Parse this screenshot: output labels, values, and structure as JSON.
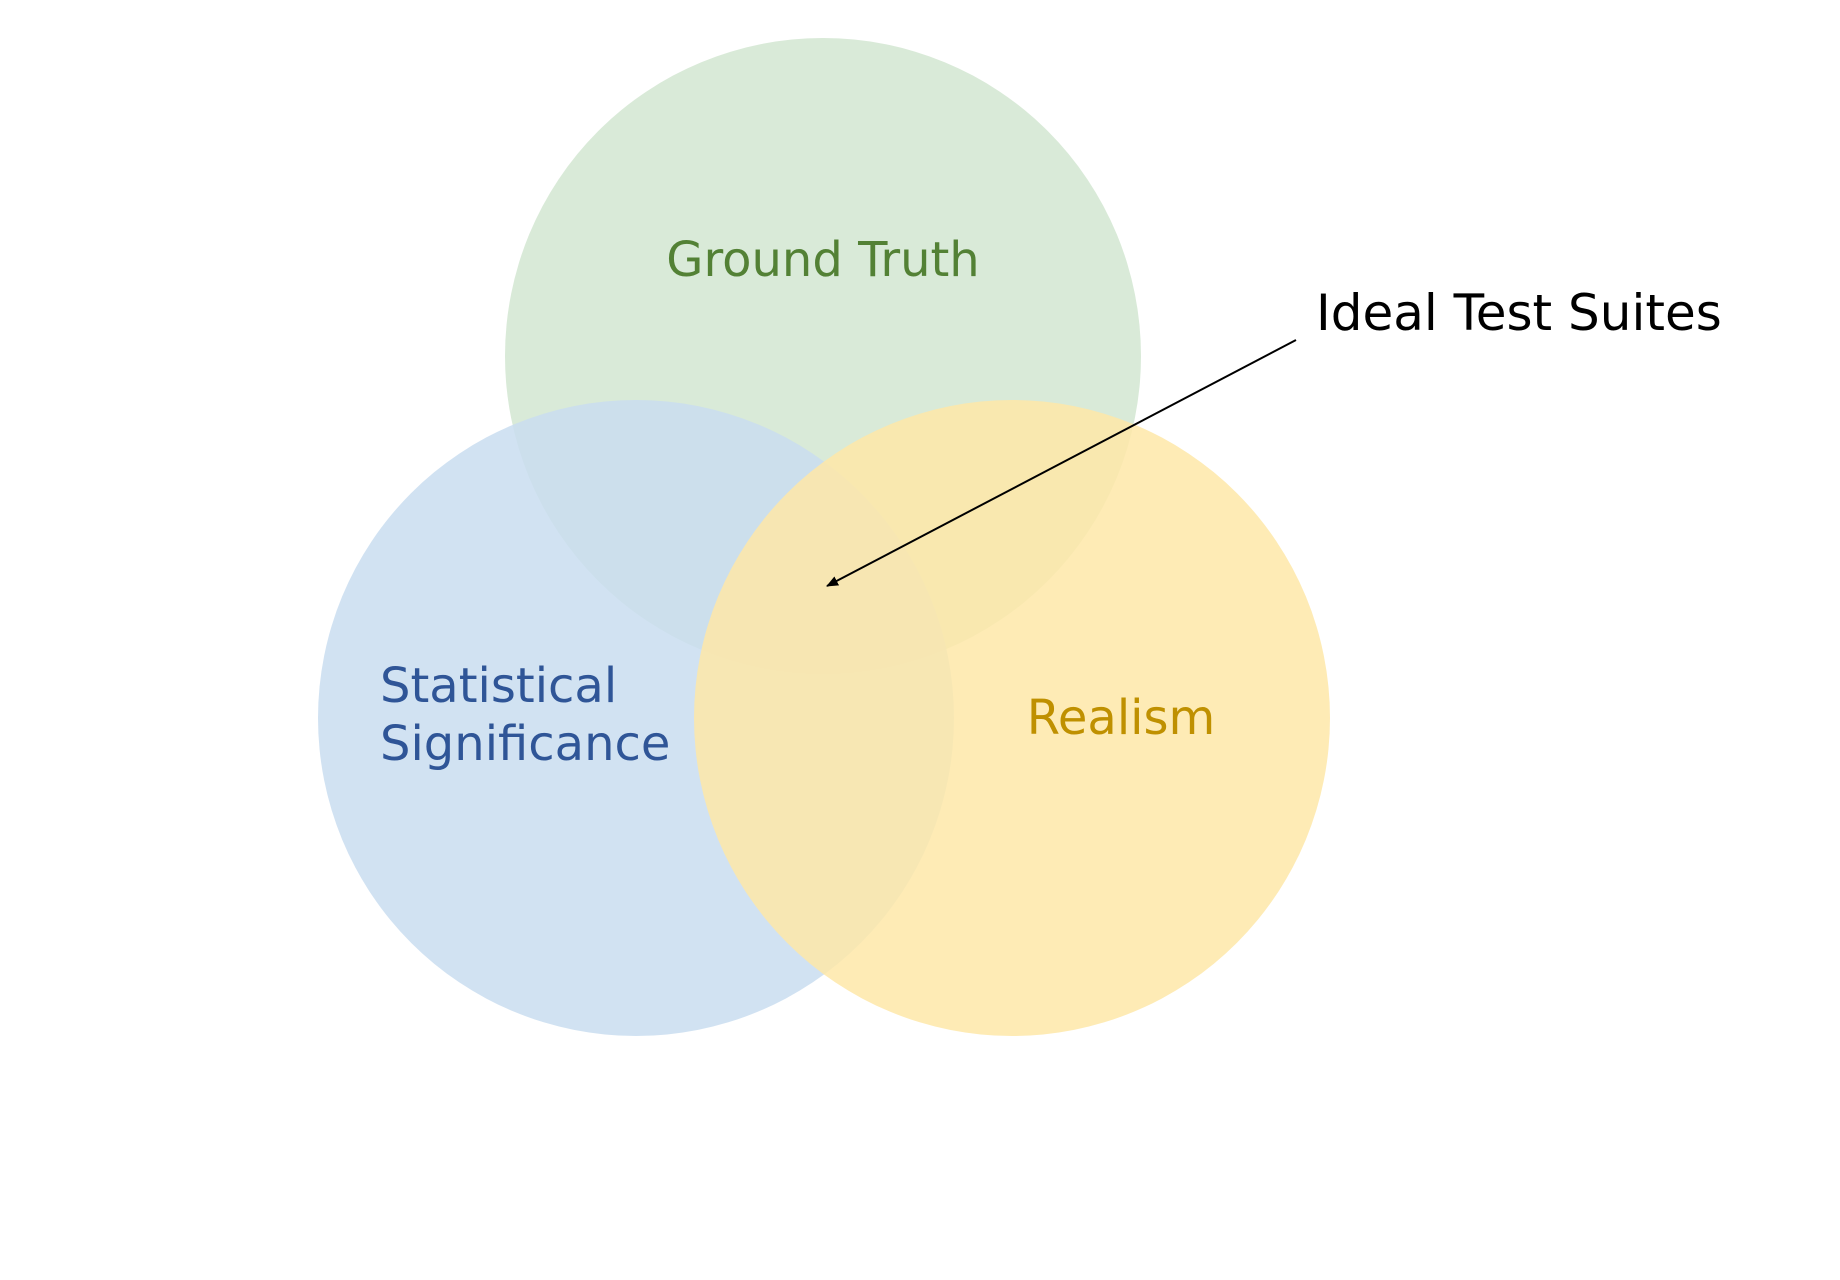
{
  "diagram": {
    "type": "venn",
    "sets": [
      {
        "id": "ground-truth",
        "label_lines": [
          "Ground Truth"
        ],
        "fill": "#d5e8d4",
        "text_color": "#538135"
      },
      {
        "id": "statistical-significance",
        "label_lines": [
          "Statistical",
          "Significance"
        ],
        "fill": "#c9ddf0",
        "text_color": "#2f5597"
      },
      {
        "id": "realism",
        "label_lines": [
          "Realism"
        ],
        "fill": "#fee8a8",
        "text_color": "#bf9000"
      }
    ],
    "callout": {
      "label": "Ideal Test Suites",
      "text_color": "#000000",
      "arrow_color": "#000000",
      "points_to": "intersection of all three sets"
    }
  }
}
